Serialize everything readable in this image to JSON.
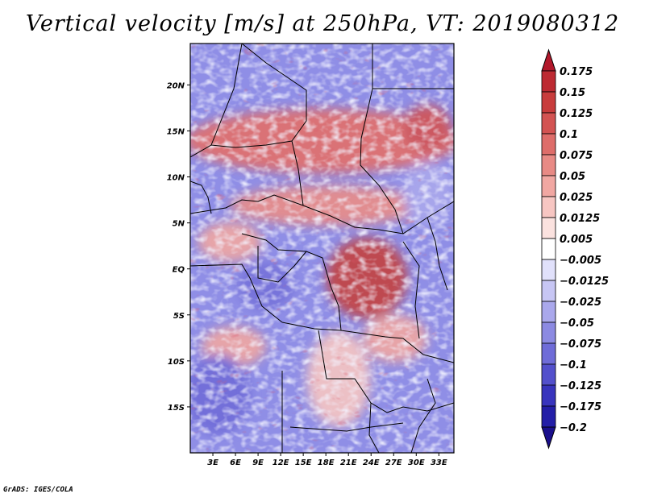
{
  "title": "Vertical velocity [m/s] at 250hPa, VT: 2019080312",
  "credit": "GrADS: IGES/COLA",
  "map": {
    "lon_range": [
      0,
      35
    ],
    "lat_range": [
      -20,
      24.5
    ],
    "lon_ticks": [
      {
        "value": 3,
        "label": "3E"
      },
      {
        "value": 6,
        "label": "6E"
      },
      {
        "value": 9,
        "label": "9E"
      },
      {
        "value": 12,
        "label": "12E"
      },
      {
        "value": 15,
        "label": "15E"
      },
      {
        "value": 18,
        "label": "18E"
      },
      {
        "value": 21,
        "label": "21E"
      },
      {
        "value": 24,
        "label": "24E"
      },
      {
        "value": 27,
        "label": "27E"
      },
      {
        "value": 30,
        "label": "30E"
      },
      {
        "value": 33,
        "label": "33E"
      }
    ],
    "lat_ticks": [
      {
        "value": 20,
        "label": "20N"
      },
      {
        "value": 15,
        "label": "15N"
      },
      {
        "value": 10,
        "label": "10N"
      },
      {
        "value": 5,
        "label": "5N"
      },
      {
        "value": 0,
        "label": "EQ"
      },
      {
        "value": -5,
        "label": "5S"
      },
      {
        "value": -10,
        "label": "10S"
      },
      {
        "value": -15,
        "label": "15S"
      }
    ]
  },
  "colorbar": {
    "levels": [
      "0.175",
      "0.15",
      "0.125",
      "0.1",
      "0.075",
      "0.05",
      "0.025",
      "0.0125",
      "0.005",
      "-0.005",
      "-0.0125",
      "-0.025",
      "-0.05",
      "-0.075",
      "-0.1",
      "-0.125",
      "-0.175",
      "-0.2"
    ],
    "colors": [
      "#b2182b",
      "#bd2a32",
      "#c83c3c",
      "#d35352",
      "#de6d6a",
      "#e88a85",
      "#f1a7a2",
      "#f7c6c2",
      "#fbe2df",
      "#ffffff",
      "#e1e1fb",
      "#c7c6f4",
      "#aaa8ec",
      "#8c8ae2",
      "#6f6cd8",
      "#5350cc",
      "#3834bd",
      "#231ea7",
      "#1a0f8c"
    ]
  }
}
